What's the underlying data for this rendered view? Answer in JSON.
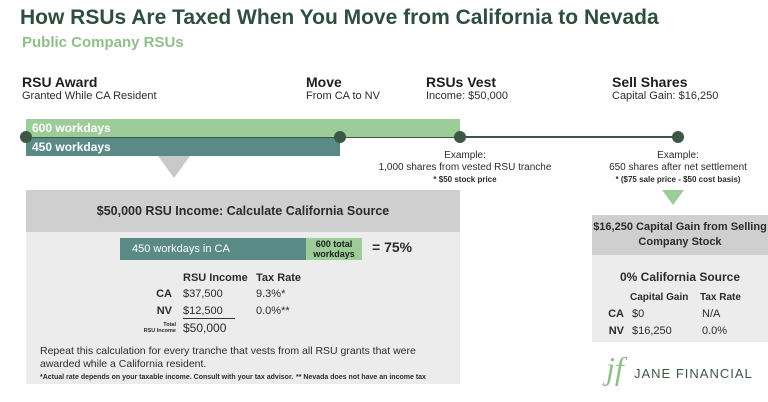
{
  "header": {
    "title": "How RSUs Are Taxed When You Move from California to Nevada",
    "subtitle": "Public Company RSUs"
  },
  "timeline": {
    "events": [
      {
        "label": "RSU Award",
        "sub": "Granted While CA Resident"
      },
      {
        "label": "Move",
        "sub": "From CA to NV"
      },
      {
        "label": "RSUs Vest",
        "sub": "Income: $50,000"
      },
      {
        "label": "Sell Shares",
        "sub": "Capital Gain: $16,250"
      }
    ],
    "bars": [
      {
        "label": "600 workdays",
        "value": 600
      },
      {
        "label": "450 workdays",
        "value": 450
      }
    ],
    "examples": [
      {
        "title": "Example:",
        "line": "1,000 shares from vested RSU tranche",
        "note": "* $50 stock price"
      },
      {
        "title": "Example:",
        "line": "650 shares after net settlement",
        "note": "* ($75 sale price - $50 cost basis)"
      }
    ]
  },
  "left_panel": {
    "heading": "$50,000 RSU Income: Calculate California Source",
    "calc_dark": "450 workdays in CA",
    "calc_light_line1": "600 total",
    "calc_light_line2": "workdays",
    "result": "= 75%",
    "table": {
      "headers": [
        "RSU Income",
        "Tax Rate"
      ],
      "rows": [
        {
          "label": "CA",
          "income": "$37,500",
          "rate": "9.3%*"
        },
        {
          "label": "NV",
          "income": "$12,500",
          "rate": "0.0%**"
        }
      ],
      "total_label_line1": "Total",
      "total_label_line2": "RSU Income",
      "total_value": "$50,000"
    },
    "repeat_text": "Repeat this calculation for every tranche that vests from all RSU grants that were awarded while a California resident.",
    "footnote1": "*Actual rate depends on your taxable income. Consult with your tax advisor.",
    "footnote2": "** Nevada does not have an income tax"
  },
  "right_panel": {
    "heading": "$16,250 Capital Gain from Selling Company Stock",
    "subheading": "0% California Source",
    "table": {
      "headers": [
        "Capital Gain",
        "Tax Rate"
      ],
      "rows": [
        {
          "label": "CA",
          "gain": "$0",
          "rate": "N/A"
        },
        {
          "label": "NV",
          "gain": "$16,250",
          "rate": "0.0%"
        }
      ]
    }
  },
  "brand": {
    "mark": "jf",
    "name": "JANE FINANCIAL"
  },
  "colors": {
    "title": "#2f4f3e",
    "accent_green": "#9ccc98",
    "teal": "#5a8a86",
    "timeline": "#3d5745",
    "panel_gray": "#ececec",
    "panel_head": "#cfcfcf"
  }
}
